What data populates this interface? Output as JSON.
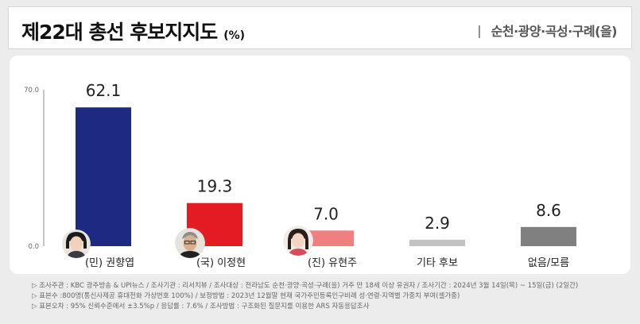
{
  "header": {
    "title": "제22대 총선 후보지지도",
    "unit": "(%)",
    "separator": "|",
    "region": "순천·광양·곡성·구례(을)"
  },
  "colors": {
    "background": "#ececec",
    "panel": "#ffffff",
    "axis": "#888888",
    "label": "#222222"
  },
  "chart_data": {
    "type": "bar",
    "title": "제22대 총선 후보지지도",
    "unit": "(%)",
    "categories": [
      "(민) 권향엽",
      "(국) 이정현",
      "(진) 유현주",
      "기타 후보",
      "없음/모름"
    ],
    "values": [
      62.1,
      19.3,
      7.0,
      2.9,
      8.6
    ],
    "value_labels": [
      "62.1",
      "19.3",
      "7.0",
      "2.9",
      "8.6"
    ],
    "bar_colors": [
      "#1e2a82",
      "#e51b23",
      "#f08080",
      "#c2c2c2",
      "#808080"
    ],
    "y_ticks": [
      {
        "value": 0,
        "label": "0.0"
      },
      {
        "value": 70,
        "label": "70.0"
      }
    ],
    "ylim": [
      0,
      70
    ],
    "xlabel": "",
    "ylabel": "",
    "grid": false
  },
  "footnotes": [
    "▷ 조사주관 : KBC 광주방송 & UPI뉴스 / 조사기관 : 리서치뷰 / 조사대상 : 전라남도 순천·광양·곡성·구례(을) 거주 만 18세 이상 유권자 / 조사기간 : 2024년 3월 14일(목) ~ 15일(금) (2일간)",
    "▷ 표본수 :800명(통신사제공 휴대전화 가상번호 100%) / 보정방법 : 2023년 12월말 현재 국가주민등록인구비례 성·연령·지역별 가중치 부여(셀가중)",
    "▷ 표본오차 : 95% 신뢰수준에서 ±3.5%p / 응답률 : 7.6% / 조사방법 : 구조화된 질문지를 이용한 ARS 자동응답조사"
  ]
}
